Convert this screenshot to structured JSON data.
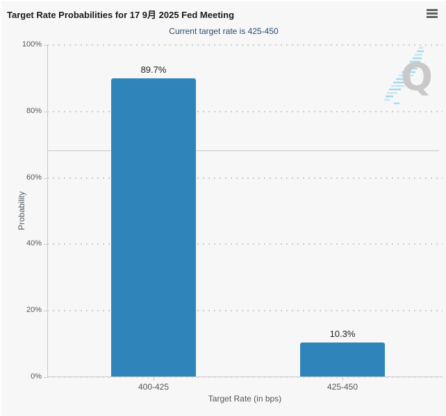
{
  "header": {
    "title": "Target Rate Probabilities for 17 9月 2025 Fed Meeting",
    "subtitle": "Current target rate is 425-450"
  },
  "menu": {
    "icon": "hamburger-menu-icon"
  },
  "watermark": {
    "icon": "quikstrike-logo",
    "letter": "Q"
  },
  "chart_data": {
    "type": "bar",
    "title": "Target Rate Probabilities for 17 9月 2025 Fed Meeting",
    "subtitle": "Current target rate is 425-450",
    "categories": [
      "400-425",
      "425-450"
    ],
    "values": [
      89.7,
      10.3
    ],
    "data_labels": [
      "89.7%",
      "10.3%"
    ],
    "xlabel": "Target Rate (in bps)",
    "ylabel": "Probability",
    "ylim": [
      0,
      100
    ],
    "yticks": [
      0,
      20,
      40,
      60,
      80,
      100
    ],
    "ytick_labels": [
      "0%",
      "20%",
      "40%",
      "60%",
      "80%",
      "100%"
    ],
    "grid": "dotted-horizontal",
    "legend": "none",
    "bar_color": "#2f84ba"
  },
  "colors": {
    "page_background": "#ffffff",
    "chart_background": "#f7f7f7",
    "bar": "#2f84ba",
    "axis_line": "#c9c9c9",
    "gridline": "#cccccc",
    "crosshair_line": "#c6c6c6",
    "tick_label": "#555555",
    "title_text": "#1a1a1a",
    "subtitle_text": "#2b4c6f",
    "data_label_text": "#222222",
    "menu_icon": "#606060",
    "watermark_q": "#c9c9c9",
    "watermark_dash": "#a8d9ee"
  }
}
